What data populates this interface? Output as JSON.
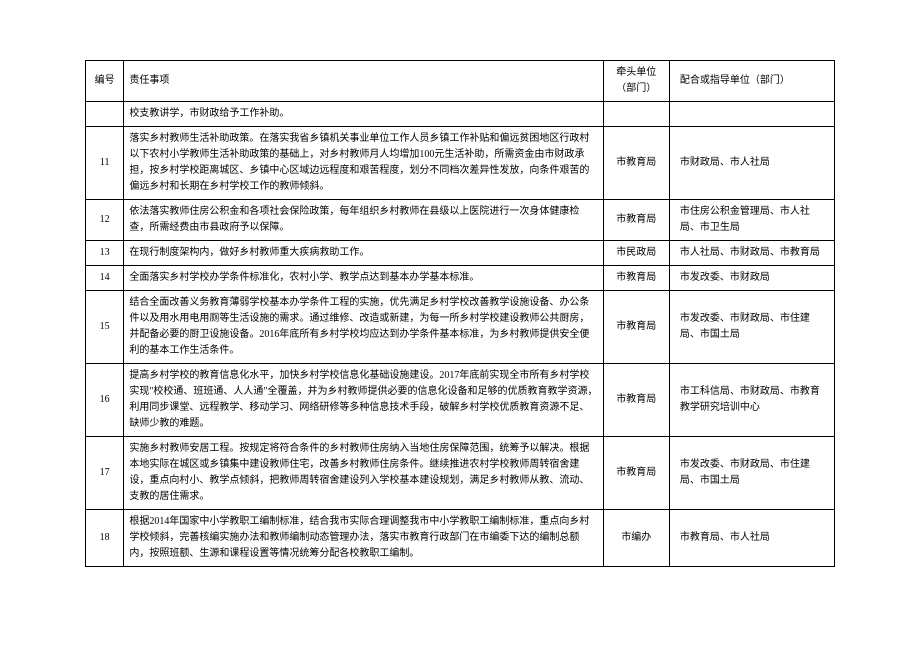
{
  "headers": {
    "num": "编号",
    "task": "责任事项",
    "lead": "牵头单位（部门）",
    "coop": "配合或指导单位（部门）"
  },
  "rows": [
    {
      "num": "",
      "task": "校支教讲学，市财政给予工作补助。",
      "lead": "",
      "coop": ""
    },
    {
      "num": "11",
      "task": "落实乡村教师生活补助政策。在落实我省乡镇机关事业单位工作人员乡镇工作补贴和偏远贫困地区行政村以下农村小学教师生活补助政策的基础上，对乡村教师月人均增加100元生活补助，所需资金由市财政承担，按乡村学校距离城区、乡镇中心区域边远程度和艰苦程度，划分不同档次差异性发放，向条件艰苦的偏远乡村和长期在乡村学校工作的教师倾斜。",
      "lead": "市教育局",
      "coop": "市财政局、市人社局"
    },
    {
      "num": "12",
      "task": "依法落实教师住房公积金和各项社会保险政策，每年组织乡村教师在县级以上医院进行一次身体健康检查，所需经费由市县政府予以保障。",
      "lead": "市教育局",
      "coop": "市住房公积金管理局、市人社局、市卫生局"
    },
    {
      "num": "13",
      "task": "在现行制度架构内，做好乡村教师重大疾病救助工作。",
      "lead": "市民政局",
      "coop": "市人社局、市财政局、市教育局"
    },
    {
      "num": "14",
      "task": "全面落实乡村学校办学条件标准化，农村小学、教学点达到基本办学基本标准。",
      "lead": "市教育局",
      "coop": "市发改委、市财政局"
    },
    {
      "num": "15",
      "task": "结合全面改善义务教育薄弱学校基本办学条件工程的实施，优先满足乡村学校改善教学设施设备、办公条件以及用水用电用厕等生活设施的需求。通过维修、改造或新建，为每一所乡村学校建设教师公共厨房，并配备必要的厨卫设施设备。2016年底所有乡村学校均应达到办学条件基本标准，为乡村教师提供安全便利的基本工作生活条件。",
      "lead": "市教育局",
      "coop": "市发改委、市财政局、市住建局、市国土局"
    },
    {
      "num": "16",
      "task": "提高乡村学校的教育信息化水平，加快乡村学校信息化基础设施建设。2017年底前实现全市所有乡村学校实现\"校校通、班班通、人人通\"全覆盖，并为乡村教师提供必要的信息化设备和足够的优质教育教学资源，利用同步课堂、远程教学、移动学习、网络研修等多种信息技术手段，破解乡村学校优质教育资源不足、缺师少教的难题。",
      "lead": "市教育局",
      "coop": "市工科信局、市财政局、市教育教学研究培训中心"
    },
    {
      "num": "17",
      "task": "实施乡村教师安居工程。按规定将符合条件的乡村教师住房纳入当地住房保障范围，统筹予以解决。根据本地实际在城区或乡镇集中建设教师住宅，改善乡村教师住房条件。继续推进农村学校教师周转宿舍建设，重点向村小、教学点倾斜，把教师周转宿舍建设列入学校基本建设规划，满足乡村教师从教、流动、支教的居住需求。",
      "lead": "市教育局",
      "coop": "市发改委、市财政局、市住建局、市国土局"
    },
    {
      "num": "18",
      "task": "根据2014年国家中小学教职工编制标准，结合我市实际合理调整我市中小学教职工编制标准，重点向乡村学校倾斜，完善核编实施办法和教师编制动态管理办法，落实市教育行政部门在市编委下达的编制总额内，按照班额、生源和课程设置等情况统筹分配各校教职工编制。",
      "lead": "市编办",
      "coop": "市教育局、市人社局"
    }
  ]
}
